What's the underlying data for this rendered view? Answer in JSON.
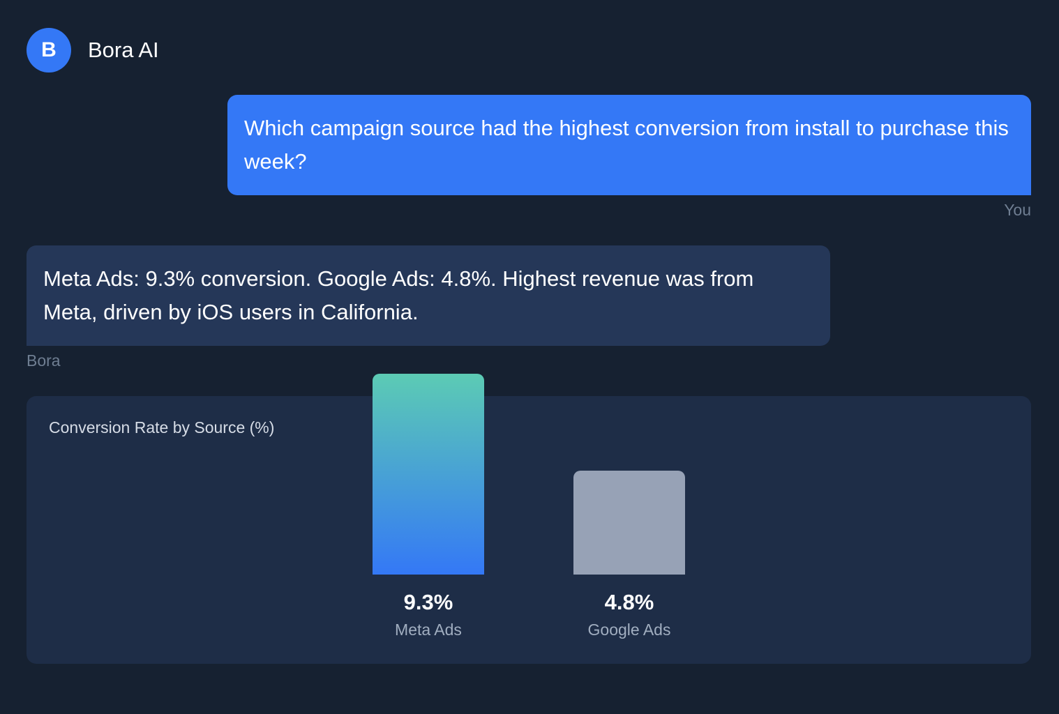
{
  "header": {
    "avatar_letter": "B",
    "title": "Bora AI"
  },
  "messages": [
    {
      "sender": "You",
      "text": "Which campaign source had the highest conversion from install to purchase this week?"
    },
    {
      "sender": "Bora",
      "text": "Meta Ads: 9.3% conversion. Google Ads: 4.8%. Highest revenue was from Meta, driven by iOS users in California."
    }
  ],
  "colors": {
    "background": "#162131",
    "accent": "#3478f6",
    "bot_bubble": "#253758",
    "card": "#1e2d47",
    "meta_bar_top": "#5ccbb4",
    "meta_bar_bottom": "#3478f6",
    "google_bar": "#97a2b6"
  },
  "chart_data": {
    "type": "bar",
    "title": "Conversion Rate by Source (%)",
    "categories": [
      "Meta Ads",
      "Google Ads"
    ],
    "values": [
      9.3,
      4.8
    ],
    "value_labels": [
      "9.3%",
      "4.8%"
    ],
    "xlabel": "",
    "ylabel": "",
    "grid": false
  }
}
